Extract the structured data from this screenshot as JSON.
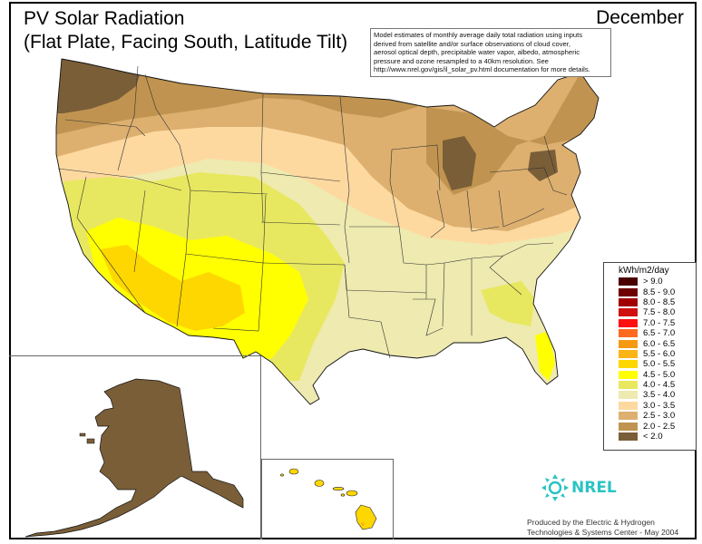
{
  "title": {
    "line1": "PV Solar Radiation",
    "line2": "(Flat Plate, Facing South, Latitude Tilt)"
  },
  "month": "December",
  "note": {
    "lines": [
      "Model estimates of monthly average daily total radiation using inputs",
      "derived from satellite and/or surface observations of cloud cover,",
      "aerosol optical depth, precipitable water vapor, albedo, atmospheric",
      "pressure and ozone resampled to a 40km resolution.  See",
      "http://www.nrel.gov/gis/il_solar_pv.html documentation for more details."
    ]
  },
  "legend": {
    "unit": "kWh/m2/day",
    "items": [
      {
        "label": "> 9.0",
        "color": "#4a0000"
      },
      {
        "label": "8.5 - 9.0",
        "color": "#6e0000"
      },
      {
        "label": "8.0 - 8.5",
        "color": "#a00000"
      },
      {
        "label": "7.5 - 8.0",
        "color": "#d01010"
      },
      {
        "label": "7.0 - 7.5",
        "color": "#ff1010"
      },
      {
        "label": "6.5 - 7.0",
        "color": "#ff6a20"
      },
      {
        "label": "6.0 - 6.5",
        "color": "#f59a10"
      },
      {
        "label": "5.5 - 6.0",
        "color": "#fbb416"
      },
      {
        "label": "5.0 - 5.5",
        "color": "#ffd700"
      },
      {
        "label": "4.5 - 5.0",
        "color": "#ffff00"
      },
      {
        "label": "4.0 - 4.5",
        "color": "#e8e860"
      },
      {
        "label": "3.5 - 4.0",
        "color": "#eeeab0"
      },
      {
        "label": "3.0 - 3.5",
        "color": "#fdd9a0"
      },
      {
        "label": "2.5 - 3.0",
        "color": "#ddb070"
      },
      {
        "label": "2.0 - 2.5",
        "color": "#c09450"
      },
      {
        "label": "< 2.0",
        "color": "#7a5e38"
      }
    ]
  },
  "logo": {
    "text": "NREL"
  },
  "credit": {
    "line1": "Produced by the Electric & Hydrogen",
    "line2": "Technologies & Systems Center - May 2004"
  }
}
